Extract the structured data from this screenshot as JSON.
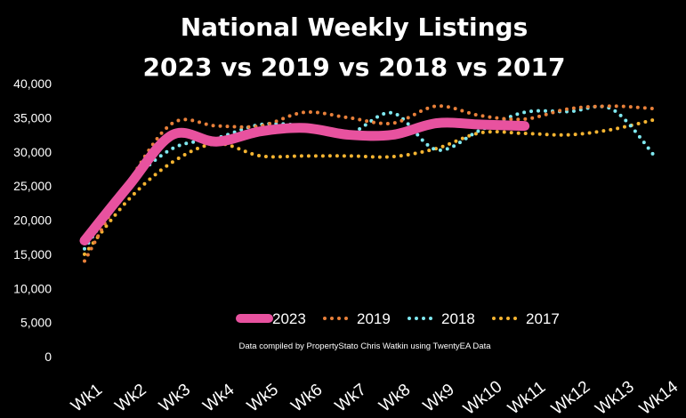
{
  "chart_data": {
    "type": "line",
    "title": [
      "National Weekly Listings",
      "2023 vs 2019 vs 2018 vs 2017"
    ],
    "categories": [
      "Wk1",
      "Wk2",
      "Wk3",
      "Wk4",
      "Wk5",
      "Wk6",
      "Wk7",
      "Wk8",
      "Wk9",
      "Wk10",
      "Wk11",
      "Wk12",
      "Wk13",
      "Wk14"
    ],
    "ylim": [
      0,
      40000
    ],
    "yticks": [
      "0",
      "5,000",
      "10,000",
      "15,000",
      "20,000",
      "25,000",
      "30,000",
      "35,000",
      "40,000"
    ],
    "grid": false,
    "legend_placement": "bottom-inside",
    "note": "Data compiled by PropertyStato Chris Watkin using TwentyEA Data",
    "series": [
      {
        "name": "2023",
        "color": "#e8529f",
        "style": "solid",
        "values": [
          17000,
          25000,
          32500,
          31500,
          33000,
          33500,
          32500,
          32500,
          34200,
          34000,
          33800,
          null,
          null,
          null
        ]
      },
      {
        "name": "2019",
        "color": "#e8803a",
        "style": "dotted",
        "values": [
          14000,
          25500,
          34200,
          33800,
          33800,
          35800,
          35000,
          34200,
          36700,
          35300,
          34800,
          36300,
          36700,
          36300
        ]
      },
      {
        "name": "2018",
        "color": "#7fe8f0",
        "style": "dotted",
        "values": [
          15800,
          25000,
          30500,
          32000,
          34000,
          33800,
          32700,
          35700,
          30300,
          33200,
          35800,
          35900,
          36200,
          29000
        ]
      },
      {
        "name": "2017",
        "color": "#f5b431",
        "style": "dotted",
        "values": [
          15000,
          23000,
          28500,
          31200,
          29400,
          29400,
          29400,
          29300,
          30500,
          32800,
          32700,
          32500,
          33300,
          34800
        ]
      }
    ]
  }
}
